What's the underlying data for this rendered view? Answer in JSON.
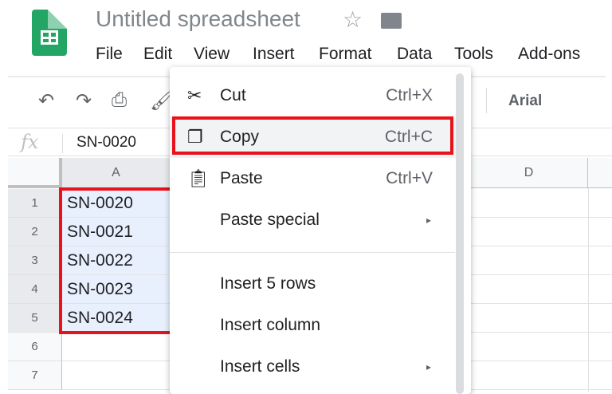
{
  "doc": {
    "title": "Untitled spreadsheet"
  },
  "menubar": [
    "File",
    "Edit",
    "View",
    "Insert",
    "Format",
    "Data",
    "Tools",
    "Add-ons"
  ],
  "toolbar": {
    "font": "Arial"
  },
  "formula": {
    "fx": "fx",
    "value": "SN-0020"
  },
  "columns": [
    "A",
    "D"
  ],
  "rows": [
    {
      "n": "1",
      "a": "SN-0020"
    },
    {
      "n": "2",
      "a": "SN-0021"
    },
    {
      "n": "3",
      "a": "SN-0022"
    },
    {
      "n": "4",
      "a": "SN-0023"
    },
    {
      "n": "5",
      "a": "SN-0024"
    },
    {
      "n": "6",
      "a": ""
    },
    {
      "n": "7",
      "a": ""
    }
  ],
  "context_menu": [
    {
      "label": "Cut",
      "shortcut": "Ctrl+X",
      "icon": "scissors-icon"
    },
    {
      "label": "Copy",
      "shortcut": "Ctrl+C",
      "icon": "copy-icon"
    },
    {
      "label": "Paste",
      "shortcut": "Ctrl+V",
      "icon": "clipboard-icon"
    },
    {
      "label": "Paste special",
      "submenu": "▸"
    },
    {
      "label": "Insert 5 rows"
    },
    {
      "label": "Insert column"
    },
    {
      "label": "Insert cells",
      "submenu": "▸"
    }
  ],
  "colors": {
    "highlight": "#e8121b",
    "selection": "#e8f0fe"
  }
}
